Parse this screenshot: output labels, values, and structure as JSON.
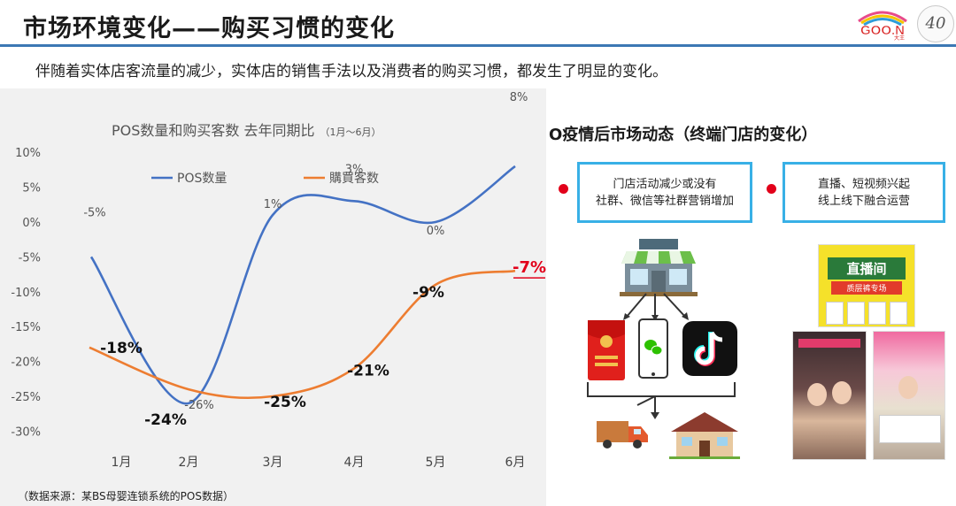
{
  "header": {
    "title": "市场环境变化——购买习惯的变化",
    "subtitle": "伴随着实体店客流量的减少，实体店的销售手法以及消费者的购买习惯，都发生了明显的变化。",
    "logo_text": "GOO.N",
    "logo_sub": "大王",
    "anniversary": "40"
  },
  "chart_data": {
    "type": "line",
    "title": "POS数量和购买客数 去年同期比",
    "title_note": "（1月～6月）",
    "categories": [
      "1月",
      "2月",
      "3月",
      "4月",
      "5月",
      "6月"
    ],
    "yticks": [
      "10%",
      "5%",
      "0%",
      "-5%",
      "-10%",
      "-15%",
      "-20%",
      "-25%",
      "-30%"
    ],
    "ylim": [
      -30,
      10
    ],
    "grid": false,
    "legend": "top",
    "series": [
      {
        "name": "POS数量",
        "color": "#4472c4",
        "values": [
          -5,
          -26,
          1,
          3,
          0,
          8
        ],
        "labels": [
          "-5%",
          "-26%",
          "1%",
          "3%",
          "0%",
          "8%"
        ]
      },
      {
        "name": "購買客数",
        "color": "#ed7d31",
        "values": [
          -18,
          -24,
          -25,
          -21,
          -9,
          -7
        ],
        "labels": [
          "-18%",
          "-24%",
          "-25%",
          "-21%",
          "-9%",
          "-7%"
        ]
      }
    ],
    "source": "（数据来源：某BS母婴连锁系统的POS数据）"
  },
  "right": {
    "section_title": "O疫情后市场动态（终端门店的变化）",
    "boxes": [
      {
        "line1": "门店活动减少或没有",
        "line2": "社群、微信等社群营销增加"
      },
      {
        "line1": "直播、短视频兴起",
        "line2": "线上线下融合运营"
      }
    ],
    "livestream_banner": "直播间",
    "livestream_sub": "质层裤专场"
  },
  "colors": {
    "accent_blue": "#3c78b4",
    "box_border": "#38b0e6",
    "bullet_red": "#e2001a",
    "panel_bg": "#f1f1f1"
  },
  "icons": [
    "store-icon",
    "phone-icon",
    "red-envelope-icon",
    "wechat-icon",
    "tiktok-icon",
    "delivery-truck-icon",
    "house-icon"
  ]
}
